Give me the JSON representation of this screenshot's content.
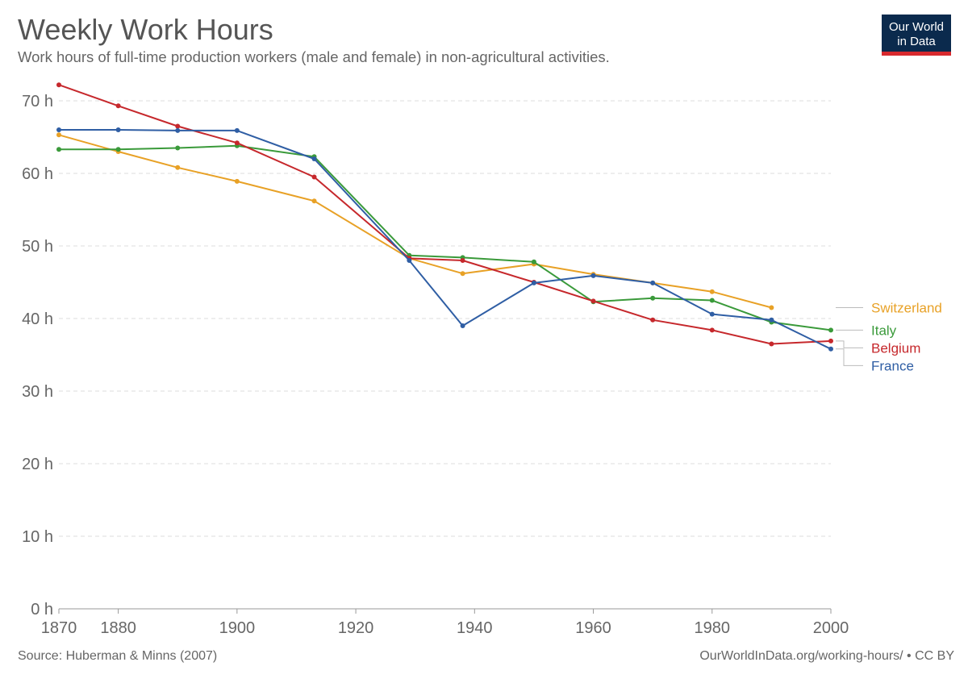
{
  "header": {
    "title": "Weekly Work Hours",
    "subtitle": "Work hours of full-time production workers (male and female) in non-agricultural activities.",
    "logo_line1": "Our World",
    "logo_line2": "in Data"
  },
  "footer": {
    "source": "Source: Huberman & Minns (2007)",
    "url": "OurWorldInData.org/working-hours/ • CC BY"
  },
  "chart_data": {
    "type": "line",
    "title": "Weekly Work Hours",
    "subtitle": "Work hours of full-time production workers (male and female) in non-agricultural activities.",
    "xlim": [
      1870,
      2000
    ],
    "ylim": [
      0,
      70
    ],
    "x_ticks": [
      {
        "value": 1870,
        "label": "1870"
      },
      {
        "value": 1880,
        "label": "1880"
      },
      {
        "value": 1900,
        "label": "1900"
      },
      {
        "value": 1920,
        "label": "1920"
      },
      {
        "value": 1940,
        "label": "1940"
      },
      {
        "value": 1960,
        "label": "1960"
      },
      {
        "value": 1980,
        "label": "1980"
      },
      {
        "value": 2000,
        "label": "2000"
      }
    ],
    "y_ticks": [
      {
        "value": 0,
        "label": "0 h"
      },
      {
        "value": 10,
        "label": "10 h"
      },
      {
        "value": 20,
        "label": "20 h"
      },
      {
        "value": 30,
        "label": "30 h"
      },
      {
        "value": 40,
        "label": "40 h"
      },
      {
        "value": 50,
        "label": "50 h"
      },
      {
        "value": 60,
        "label": "60 h"
      },
      {
        "value": 70,
        "label": "70 h"
      }
    ],
    "grid": "horizontal-dashed",
    "legend": "right-end-labels",
    "series": [
      {
        "name": "Switzerland",
        "color": "#e8a126",
        "points": [
          [
            1870,
            65.3
          ],
          [
            1880,
            63.0
          ],
          [
            1890,
            60.8
          ],
          [
            1900,
            58.9
          ],
          [
            1913,
            56.2
          ],
          [
            1929,
            48.3
          ],
          [
            1938,
            46.2
          ],
          [
            1950,
            47.5
          ],
          [
            1960,
            46.1
          ],
          [
            1970,
            44.9
          ],
          [
            1980,
            43.7
          ],
          [
            1990,
            41.5
          ]
        ]
      },
      {
        "name": "Italy",
        "color": "#3a9a3a",
        "points": [
          [
            1870,
            63.3
          ],
          [
            1880,
            63.3
          ],
          [
            1890,
            63.5
          ],
          [
            1900,
            63.8
          ],
          [
            1913,
            62.3
          ],
          [
            1929,
            48.7
          ],
          [
            1938,
            48.4
          ],
          [
            1950,
            47.8
          ],
          [
            1960,
            42.3
          ],
          [
            1970,
            42.8
          ],
          [
            1980,
            42.5
          ],
          [
            1990,
            39.5
          ],
          [
            2000,
            38.4
          ]
        ]
      },
      {
        "name": "Belgium",
        "color": "#c6282c",
        "points": [
          [
            1870,
            72.2
          ],
          [
            1880,
            69.3
          ],
          [
            1890,
            66.5
          ],
          [
            1900,
            64.2
          ],
          [
            1913,
            59.5
          ],
          [
            1929,
            48.3
          ],
          [
            1938,
            48.0
          ],
          [
            1950,
            45.0
          ],
          [
            1960,
            42.4
          ],
          [
            1970,
            39.8
          ],
          [
            1980,
            38.4
          ],
          [
            1990,
            36.5
          ],
          [
            2000,
            36.9
          ]
        ]
      },
      {
        "name": "France",
        "color": "#2f5ea4",
        "points": [
          [
            1870,
            66.0
          ],
          [
            1880,
            66.0
          ],
          [
            1890,
            65.9
          ],
          [
            1900,
            65.9
          ],
          [
            1913,
            62.0
          ],
          [
            1929,
            48.0
          ],
          [
            1938,
            39.0
          ],
          [
            1950,
            44.9
          ],
          [
            1960,
            45.9
          ],
          [
            1970,
            44.9
          ],
          [
            1980,
            40.6
          ],
          [
            1990,
            39.8
          ],
          [
            2000,
            35.8
          ]
        ]
      }
    ]
  }
}
